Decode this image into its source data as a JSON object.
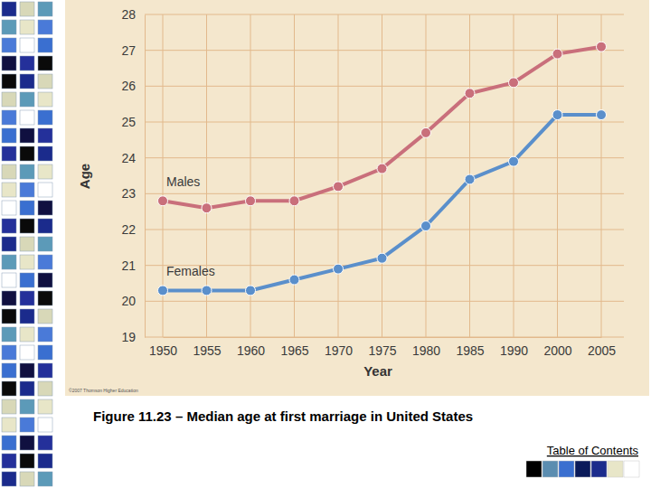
{
  "chart_data": {
    "type": "line",
    "title": "Figure 11.23 – Median age at first marriage in United States",
    "x_label": "Year",
    "y_label": "Age",
    "categories": [
      "1950",
      "1955",
      "1960",
      "1965",
      "1970",
      "1975",
      "1980",
      "1985",
      "1990",
      "2000",
      "2005"
    ],
    "series": [
      {
        "name": "Males",
        "color": "#c96f7b",
        "marker": "circle",
        "values": [
          22.8,
          22.6,
          22.8,
          22.8,
          23.2,
          23.7,
          24.7,
          25.8,
          26.1,
          26.9,
          27.1
        ]
      },
      {
        "name": "Females",
        "color": "#5a8fcb",
        "marker": "circle",
        "values": [
          20.3,
          20.3,
          20.3,
          20.6,
          20.9,
          21.2,
          22.1,
          23.4,
          23.9,
          25.2,
          25.2
        ]
      }
    ],
    "ylim": [
      19,
      28
    ],
    "yticks": [
      19,
      20,
      21,
      22,
      23,
      24,
      25,
      26,
      27,
      28
    ],
    "grid": true
  },
  "page": {
    "link": "Table of Contents",
    "credit": "©2007 Thomson Higher Education"
  }
}
